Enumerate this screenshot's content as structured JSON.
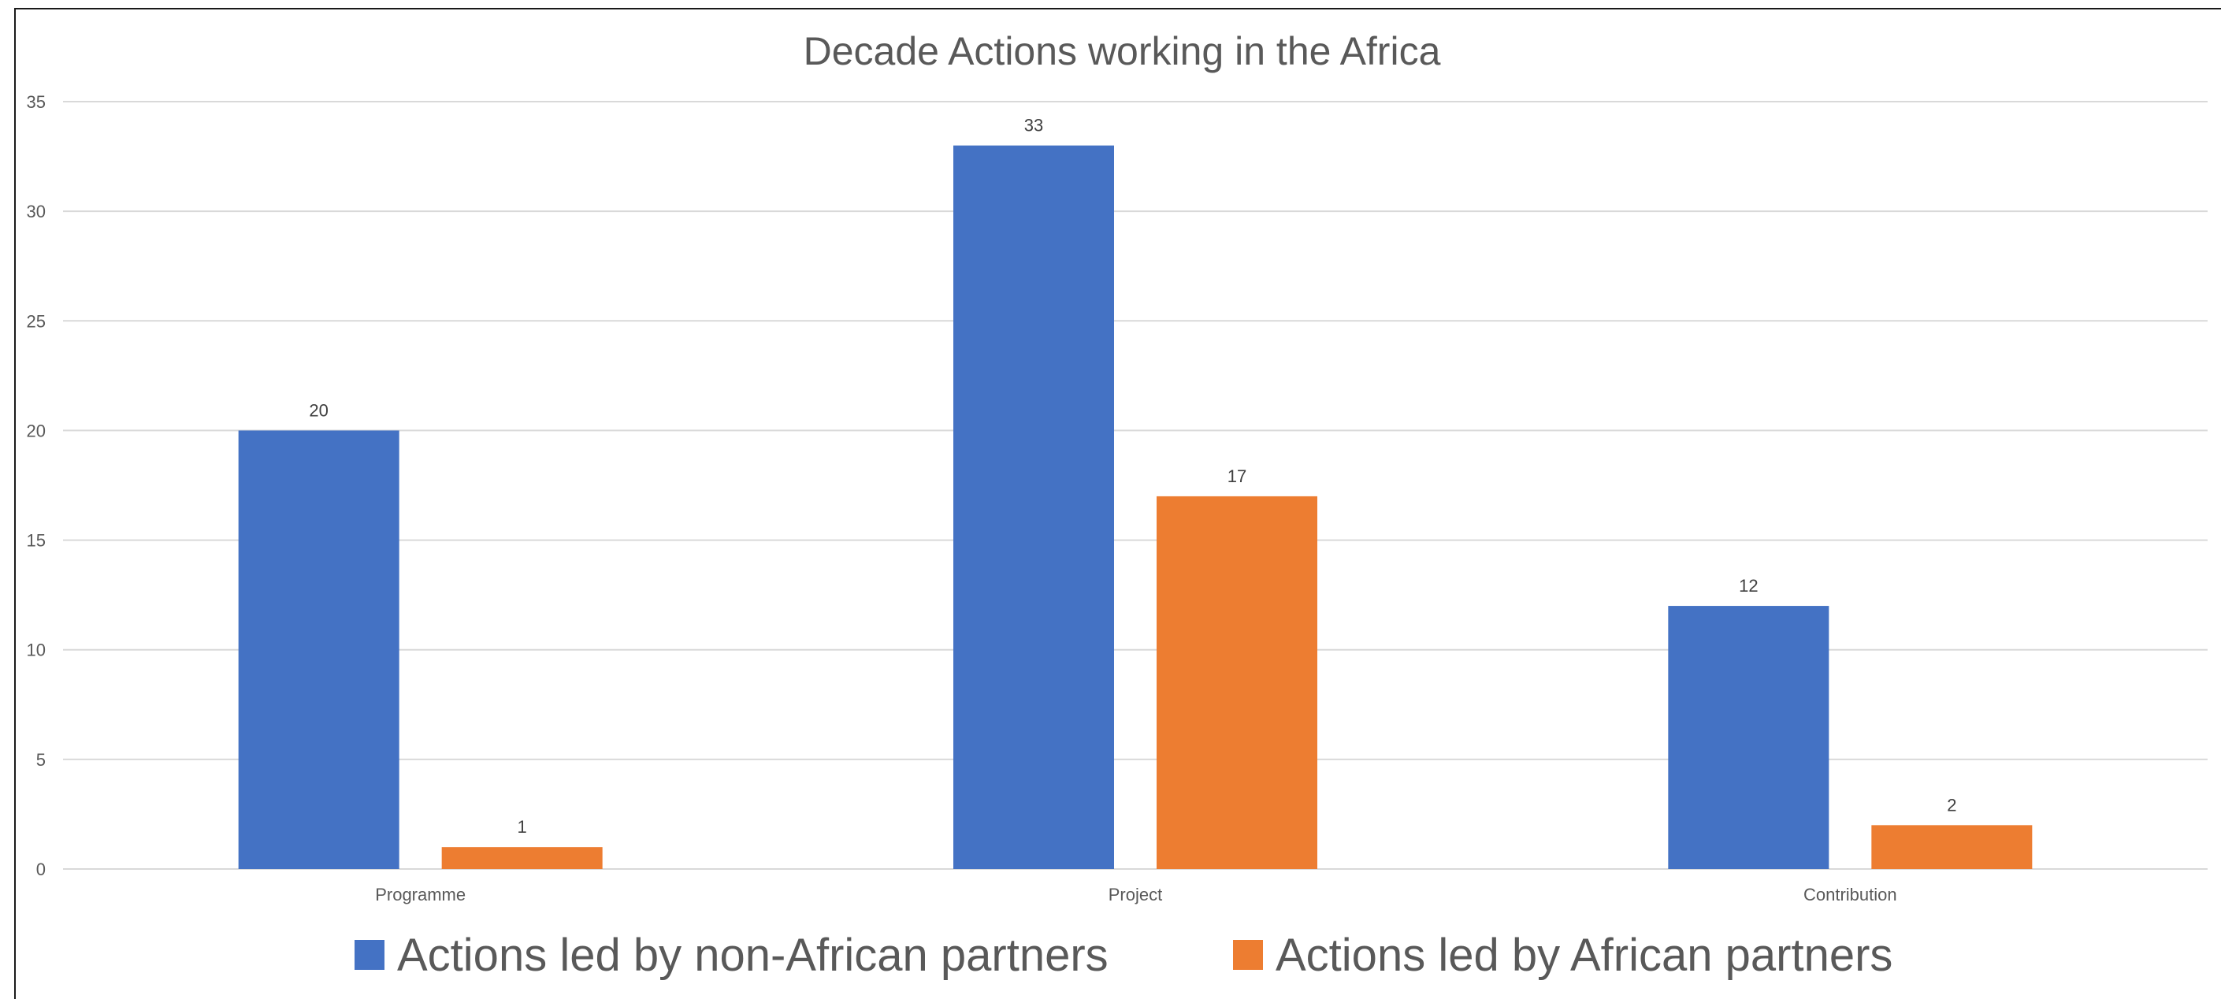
{
  "chart_data": {
    "type": "bar",
    "title": "Decade Actions working in the Africa",
    "xlabel": "",
    "ylabel": "",
    "categories": [
      "Programme",
      "Project",
      "Contribution"
    ],
    "series": [
      {
        "name": "Actions led by non-African partners",
        "values": [
          20,
          33,
          12
        ],
        "color": "#4472C4"
      },
      {
        "name": "Actions led by African partners",
        "values": [
          1,
          17,
          2
        ],
        "color": "#ED7D31"
      }
    ],
    "ylim": [
      0,
      35
    ],
    "yticks": [
      0,
      5,
      10,
      15,
      20,
      25,
      30,
      35
    ],
    "grid": true,
    "legend": "bottom",
    "data_labels": true
  }
}
